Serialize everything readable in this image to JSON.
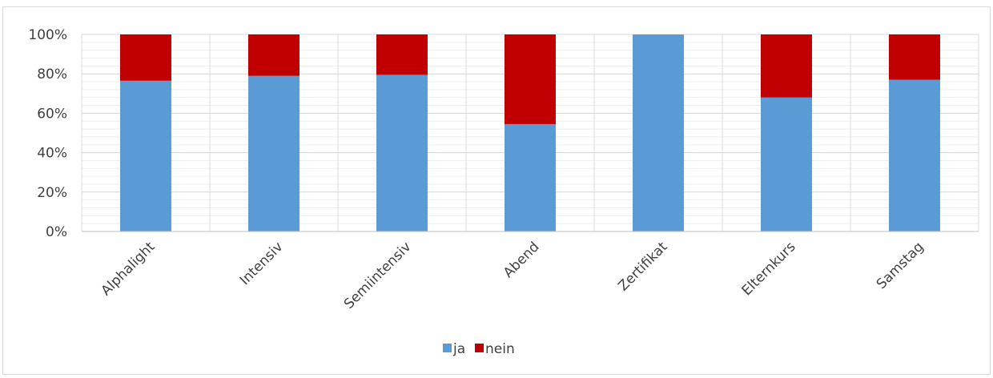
{
  "chart_data": {
    "type": "bar",
    "stacked": true,
    "normalized_percent": true,
    "categories": [
      "Alphalight",
      "Intensiv",
      "Semiintensiv",
      "Abend",
      "Zertifikat",
      "Elternkurs",
      "Samstag"
    ],
    "series": [
      {
        "name": "ja",
        "color": "#5b9bd5",
        "values": [
          76.5,
          79,
          79.5,
          54.5,
          100,
          68,
          77
        ]
      },
      {
        "name": "nein",
        "color": "#c00000",
        "values": [
          23.5,
          21,
          20.5,
          45.5,
          0,
          32,
          23
        ]
      }
    ],
    "y_ticks": [
      "0%",
      "20%",
      "40%",
      "60%",
      "80%",
      "100%"
    ],
    "ylim": [
      0,
      100
    ],
    "grid": true,
    "legend_position": "bottom"
  }
}
